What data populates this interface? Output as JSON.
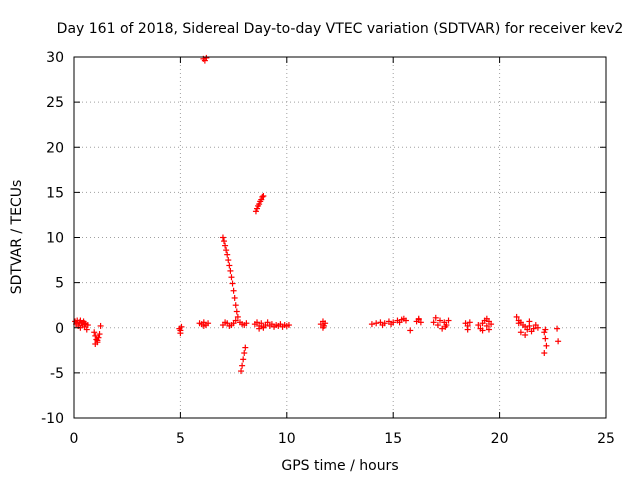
{
  "chart_data": {
    "type": "scatter",
    "title": "Day 161 of 2018, Sidereal Day-to-day VTEC variation (SDTVAR) for receiver kev2",
    "xlabel": "GPS time / hours",
    "ylabel": "SDTVAR / TECUs",
    "xlim": [
      0,
      25
    ],
    "ylim": [
      -10,
      30
    ],
    "xticks": [
      "0",
      "5",
      "10",
      "15",
      "20",
      "25"
    ],
    "yticks": [
      "-10",
      "-5",
      "0",
      "5",
      "10",
      "15",
      "20",
      "25",
      "30"
    ],
    "grid": true,
    "marker": "+",
    "color": "#ff0000",
    "series": [
      {
        "name": "SDTVAR",
        "points": [
          [
            0.05,
            0.7
          ],
          [
            0.1,
            0.4
          ],
          [
            0.15,
            0.8
          ],
          [
            0.2,
            0.2
          ],
          [
            0.25,
            0.6
          ],
          [
            0.3,
            0.0
          ],
          [
            0.35,
            0.5
          ],
          [
            0.4,
            0.3
          ],
          [
            0.45,
            0.7
          ],
          [
            0.5,
            0.1
          ],
          [
            0.55,
            0.4
          ],
          [
            0.6,
            -0.2
          ],
          [
            0.65,
            0.3
          ],
          [
            0.5,
            0.5
          ],
          [
            0.3,
            0.8
          ],
          [
            0.95,
            -0.5
          ],
          [
            1.0,
            -0.9
          ],
          [
            1.05,
            -1.3
          ],
          [
            1.1,
            -1.6
          ],
          [
            1.15,
            -1.1
          ],
          [
            1.2,
            -0.7
          ],
          [
            1.25,
            0.2
          ],
          [
            1.1,
            -1.4
          ],
          [
            1.0,
            -1.8
          ],
          [
            4.95,
            -0.1
          ],
          [
            5.0,
            -0.3
          ],
          [
            5.05,
            0.1
          ],
          [
            5.0,
            -0.6
          ],
          [
            5.9,
            0.5
          ],
          [
            6.0,
            0.4
          ],
          [
            6.1,
            0.6
          ],
          [
            6.2,
            0.3
          ],
          [
            6.3,
            0.5
          ],
          [
            6.1,
            0.2
          ],
          [
            6.08,
            29.8
          ],
          [
            6.15,
            29.6
          ],
          [
            6.22,
            29.9
          ],
          [
            7.0,
            10.0
          ],
          [
            7.05,
            9.6
          ],
          [
            7.1,
            9.1
          ],
          [
            7.15,
            8.6
          ],
          [
            7.2,
            8.1
          ],
          [
            7.25,
            7.5
          ],
          [
            7.3,
            6.9
          ],
          [
            7.35,
            6.3
          ],
          [
            7.4,
            5.6
          ],
          [
            7.45,
            4.9
          ],
          [
            7.5,
            4.1
          ],
          [
            7.55,
            3.3
          ],
          [
            7.6,
            2.5
          ],
          [
            7.65,
            1.8
          ],
          [
            7.7,
            1.2
          ],
          [
            7.6,
            0.8
          ],
          [
            7.5,
            0.5
          ],
          [
            7.4,
            0.3
          ],
          [
            7.2,
            0.5
          ],
          [
            7.0,
            0.3
          ],
          [
            7.1,
            0.6
          ],
          [
            7.3,
            0.2
          ],
          [
            7.8,
            0.6
          ],
          [
            7.9,
            0.4
          ],
          [
            8.0,
            0.3
          ],
          [
            8.1,
            0.5
          ],
          [
            7.85,
            -4.8
          ],
          [
            7.9,
            -4.2
          ],
          [
            7.95,
            -3.5
          ],
          [
            8.0,
            -2.8
          ],
          [
            8.05,
            -2.2
          ],
          [
            8.55,
            12.9
          ],
          [
            8.6,
            13.2
          ],
          [
            8.65,
            13.5
          ],
          [
            8.7,
            13.7
          ],
          [
            8.75,
            14.0
          ],
          [
            8.8,
            14.2
          ],
          [
            8.85,
            14.5
          ],
          [
            8.9,
            14.6
          ],
          [
            8.5,
            0.4
          ],
          [
            8.6,
            0.6
          ],
          [
            8.7,
            0.2
          ],
          [
            8.8,
            0.5
          ],
          [
            8.9,
            0.1
          ],
          [
            9.0,
            0.3
          ],
          [
            9.1,
            0.6
          ],
          [
            9.2,
            0.2
          ],
          [
            9.3,
            0.4
          ],
          [
            9.4,
            0.1
          ],
          [
            9.5,
            0.3
          ],
          [
            9.6,
            0.2
          ],
          [
            9.7,
            0.4
          ],
          [
            9.8,
            0.1
          ],
          [
            9.9,
            0.3
          ],
          [
            10.0,
            0.2
          ],
          [
            10.1,
            0.3
          ],
          [
            8.7,
            -0.1
          ],
          [
            8.9,
            0.0
          ],
          [
            11.6,
            0.4
          ],
          [
            11.7,
            0.7
          ],
          [
            11.75,
            0.2
          ],
          [
            11.8,
            0.5
          ],
          [
            11.7,
            0.0
          ],
          [
            14.0,
            0.4
          ],
          [
            14.2,
            0.5
          ],
          [
            14.4,
            0.6
          ],
          [
            14.6,
            0.5
          ],
          [
            14.8,
            0.7
          ],
          [
            15.0,
            0.6
          ],
          [
            15.2,
            0.8
          ],
          [
            15.4,
            0.9
          ],
          [
            15.5,
            1.0
          ],
          [
            15.6,
            0.8
          ],
          [
            14.5,
            0.3
          ],
          [
            14.9,
            0.4
          ],
          [
            15.3,
            0.6
          ],
          [
            15.8,
            -0.3
          ],
          [
            16.1,
            0.7
          ],
          [
            16.2,
            0.9
          ],
          [
            16.3,
            0.6
          ],
          [
            16.2,
            1.0
          ],
          [
            16.9,
            0.6
          ],
          [
            17.0,
            1.1
          ],
          [
            17.1,
            0.3
          ],
          [
            17.2,
            0.8
          ],
          [
            17.3,
            -0.1
          ],
          [
            17.4,
            0.6
          ],
          [
            17.5,
            0.3
          ],
          [
            17.6,
            0.8
          ],
          [
            17.45,
            0.1
          ],
          [
            18.4,
            0.5
          ],
          [
            18.5,
            0.2
          ],
          [
            18.6,
            0.6
          ],
          [
            18.5,
            -0.2
          ],
          [
            19.0,
            0.3
          ],
          [
            19.1,
            -0.1
          ],
          [
            19.2,
            0.5
          ],
          [
            19.3,
            0.8
          ],
          [
            19.4,
            0.2
          ],
          [
            19.5,
            0.7
          ],
          [
            19.6,
            0.4
          ],
          [
            19.2,
            -0.3
          ],
          [
            19.4,
            1.0
          ],
          [
            19.5,
            -0.2
          ],
          [
            20.8,
            1.2
          ],
          [
            20.9,
            0.8
          ],
          [
            21.0,
            0.6
          ],
          [
            21.1,
            0.3
          ],
          [
            21.2,
            0.1
          ],
          [
            21.3,
            -0.2
          ],
          [
            21.4,
            0.2
          ],
          [
            21.5,
            -0.4
          ],
          [
            21.6,
            -0.1
          ],
          [
            21.7,
            0.3
          ],
          [
            21.8,
            0.0
          ],
          [
            21.2,
            -0.8
          ],
          [
            21.0,
            -0.5
          ],
          [
            21.4,
            0.7
          ],
          [
            20.9,
            0.5
          ],
          [
            22.1,
            -0.5
          ],
          [
            22.15,
            -1.2
          ],
          [
            22.2,
            -2.0
          ],
          [
            22.1,
            -2.8
          ],
          [
            22.15,
            -0.2
          ],
          [
            22.7,
            -0.1
          ],
          [
            22.75,
            -1.5
          ]
        ]
      }
    ]
  }
}
